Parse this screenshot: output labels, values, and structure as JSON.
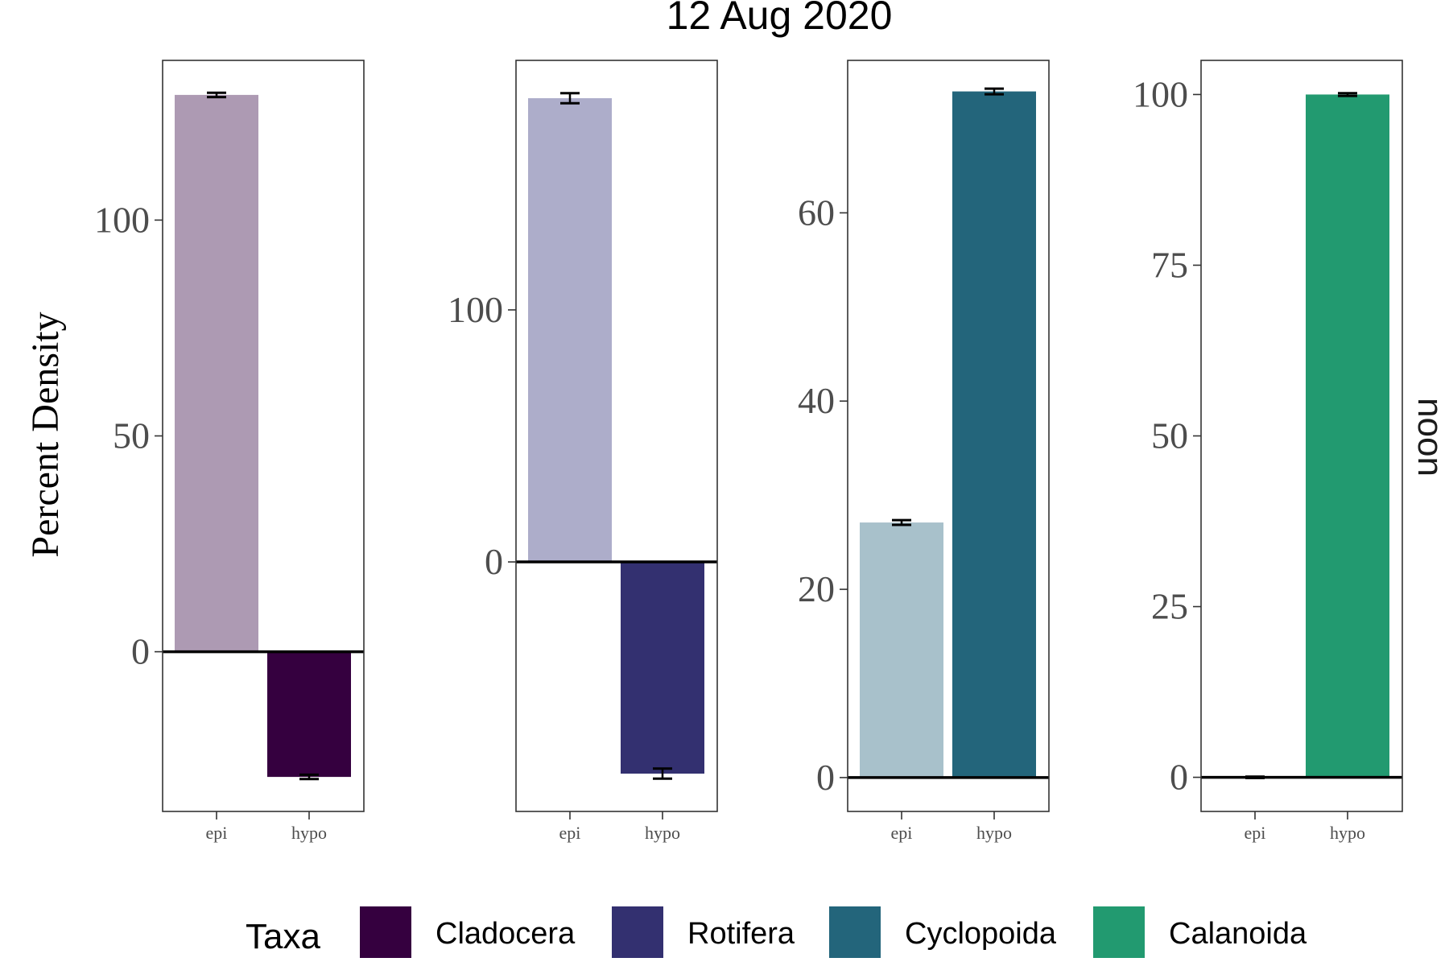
{
  "chart_data": {
    "type": "bar",
    "title": "12 Aug 2020",
    "ylabel": "Percent Density",
    "strip_label": "noon",
    "categories": [
      "epi",
      "hypo"
    ],
    "grid": false,
    "legend": {
      "title": "Taxa",
      "position": "bottom",
      "entries": [
        {
          "label": "Cladocera",
          "color": "#35003f"
        },
        {
          "label": "Rotifera",
          "color": "#333070"
        },
        {
          "label": "Cyclopoida",
          "color": "#23657b"
        },
        {
          "label": "Calanoida",
          "color": "#229a70"
        }
      ]
    },
    "panels": [
      {
        "taxon": "Cladocera",
        "ylim": [
          -37,
          137
        ],
        "yticks": [
          "0",
          "50",
          "100"
        ],
        "ytick_values": [
          0,
          50,
          100
        ],
        "values": [
          129,
          -29
        ],
        "errors": [
          0.5,
          0.5
        ],
        "colors": [
          "#ad9ab3",
          "#35003f"
        ]
      },
      {
        "taxon": "Rotifera",
        "ylim": [
          -99,
          199
        ],
        "yticks": [
          "0",
          "100"
        ],
        "ytick_values": [
          0,
          100
        ],
        "values": [
          184,
          -84
        ],
        "errors": [
          2,
          2
        ],
        "colors": [
          "#adadca",
          "#333070"
        ]
      },
      {
        "taxon": "Cyclopoida",
        "ylim": [
          -3.6,
          76.2
        ],
        "yticks": [
          "0",
          "20",
          "40",
          "60"
        ],
        "ytick_values": [
          0,
          20,
          40,
          60
        ],
        "values": [
          27.1,
          72.9
        ],
        "errors": [
          0.25,
          0.3
        ],
        "colors": [
          "#a8c1cb",
          "#23657b"
        ]
      },
      {
        "taxon": "Calanoida",
        "ylim": [
          -5,
          105
        ],
        "yticks": [
          "0",
          "25",
          "50",
          "75",
          "100"
        ],
        "ytick_values": [
          0,
          25,
          50,
          75,
          100
        ],
        "values": [
          0,
          100
        ],
        "errors": [
          0.1,
          0.2
        ],
        "colors": [
          "#a7d6c6",
          "#229a70"
        ]
      }
    ]
  }
}
